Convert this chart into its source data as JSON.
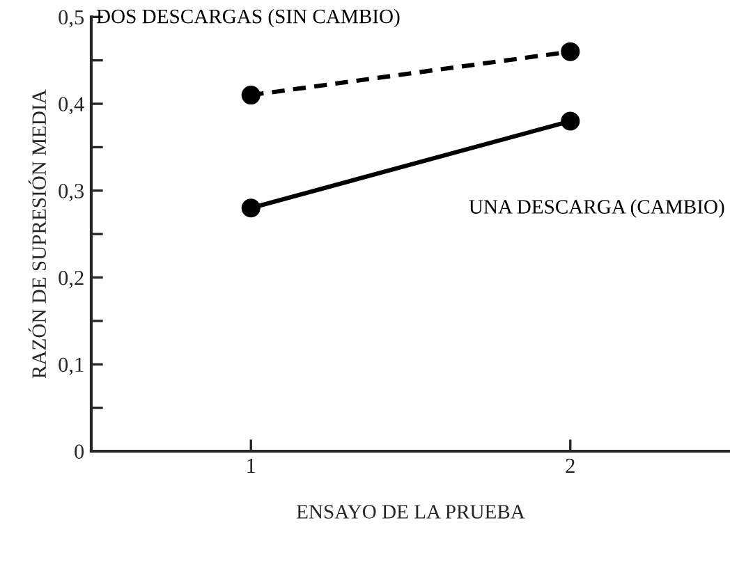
{
  "chart_data": {
    "type": "line",
    "xlabel": "ENSAYO DE LA PRUEBA",
    "ylabel": "RAZÓN DE SUPRESIÓN MEDIA",
    "x": [
      1,
      2
    ],
    "series": [
      {
        "name": "DOS DESCARGAS (SIN CAMBIO)",
        "color": "#000000",
        "values": [
          0.41,
          0.46
        ],
        "line_style": "dashed"
      },
      {
        "name": "UNA DESCARGA (CAMBIO)",
        "color": "#000000",
        "values": [
          0.28,
          0.38
        ],
        "line_style": "solid"
      }
    ],
    "xlim": [
      0.5,
      2.5
    ],
    "xticks": [
      1,
      2
    ],
    "ylim": [
      0,
      0.5
    ],
    "yticks": [
      {
        "value": 0,
        "label": "0"
      },
      {
        "value": 0.05,
        "label": null
      },
      {
        "value": 0.1,
        "label": "0,1"
      },
      {
        "value": 0.15,
        "label": null
      },
      {
        "value": 0.2,
        "label": "0,2"
      },
      {
        "value": 0.25,
        "label": null
      },
      {
        "value": 0.3,
        "label": "0,3"
      },
      {
        "value": 0.35,
        "label": null
      },
      {
        "value": 0.4,
        "label": "0,4"
      },
      {
        "value": 0.45,
        "label": null
      },
      {
        "value": 0.5,
        "label": "0,5"
      }
    ],
    "marker": "circle",
    "grid": false,
    "legend": false
  }
}
